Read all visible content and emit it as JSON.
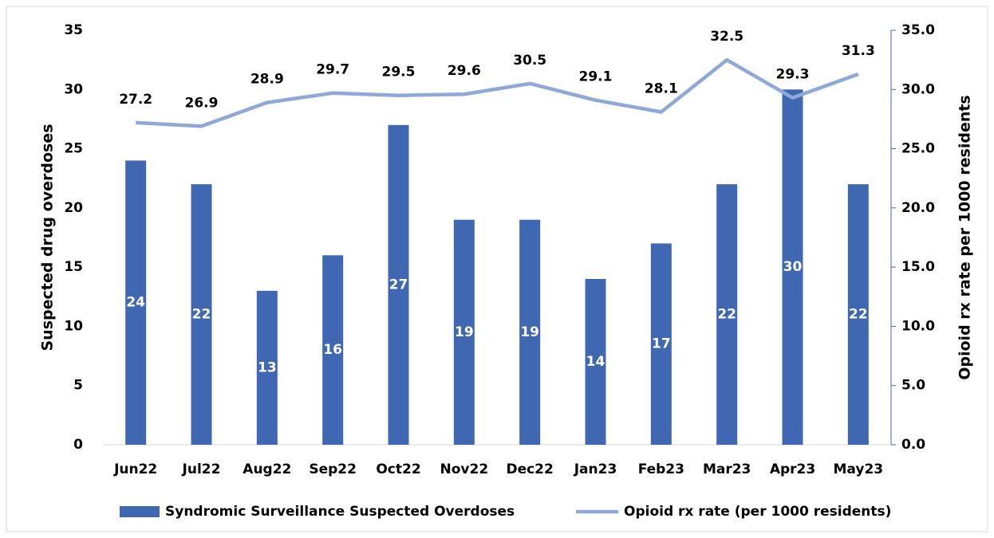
{
  "chart_data": {
    "type": "bar",
    "y_label": "Suspected drug overdoses",
    "y2_label": "Opioid rx rate per 1000 residents",
    "categories": [
      "Jun22",
      "Jul22",
      "Aug22",
      "Sep22",
      "Oct22",
      "Nov22",
      "Dec22",
      "Jan23",
      "Feb23",
      "Mar23",
      "Apr23",
      "May23"
    ],
    "series": [
      {
        "name": "Syndromic Surveillance Suspected Overdoses",
        "type": "bar",
        "color": "#4067b1",
        "values": [
          24,
          22,
          13,
          16,
          27,
          19,
          19,
          14,
          17,
          22,
          30,
          22
        ]
      },
      {
        "name": "Opioid rx rate (per 1000 residents)",
        "type": "line",
        "axis": "y2",
        "color": "#8fa8da",
        "values": [
          27.2,
          26.9,
          28.9,
          29.7,
          29.5,
          29.6,
          30.5,
          29.1,
          28.1,
          32.5,
          29.3,
          31.3
        ]
      }
    ],
    "ylim": [
      0,
      35
    ],
    "yticks": [
      0,
      5,
      10,
      15,
      20,
      25,
      30,
      35
    ],
    "y2lim": [
      0,
      35
    ],
    "y2ticks": [
      {
        "value": 0,
        "label": "0.0"
      },
      {
        "value": 5,
        "label": "5.0"
      },
      {
        "value": 10,
        "label": "10.0"
      },
      {
        "value": 15,
        "label": "15.0"
      },
      {
        "value": 20,
        "label": "20.0"
      },
      {
        "value": 25,
        "label": "25.0"
      },
      {
        "value": 30,
        "label": "30.0"
      },
      {
        "value": 35,
        "label": "35.0"
      }
    ],
    "legend": "bottom"
  }
}
